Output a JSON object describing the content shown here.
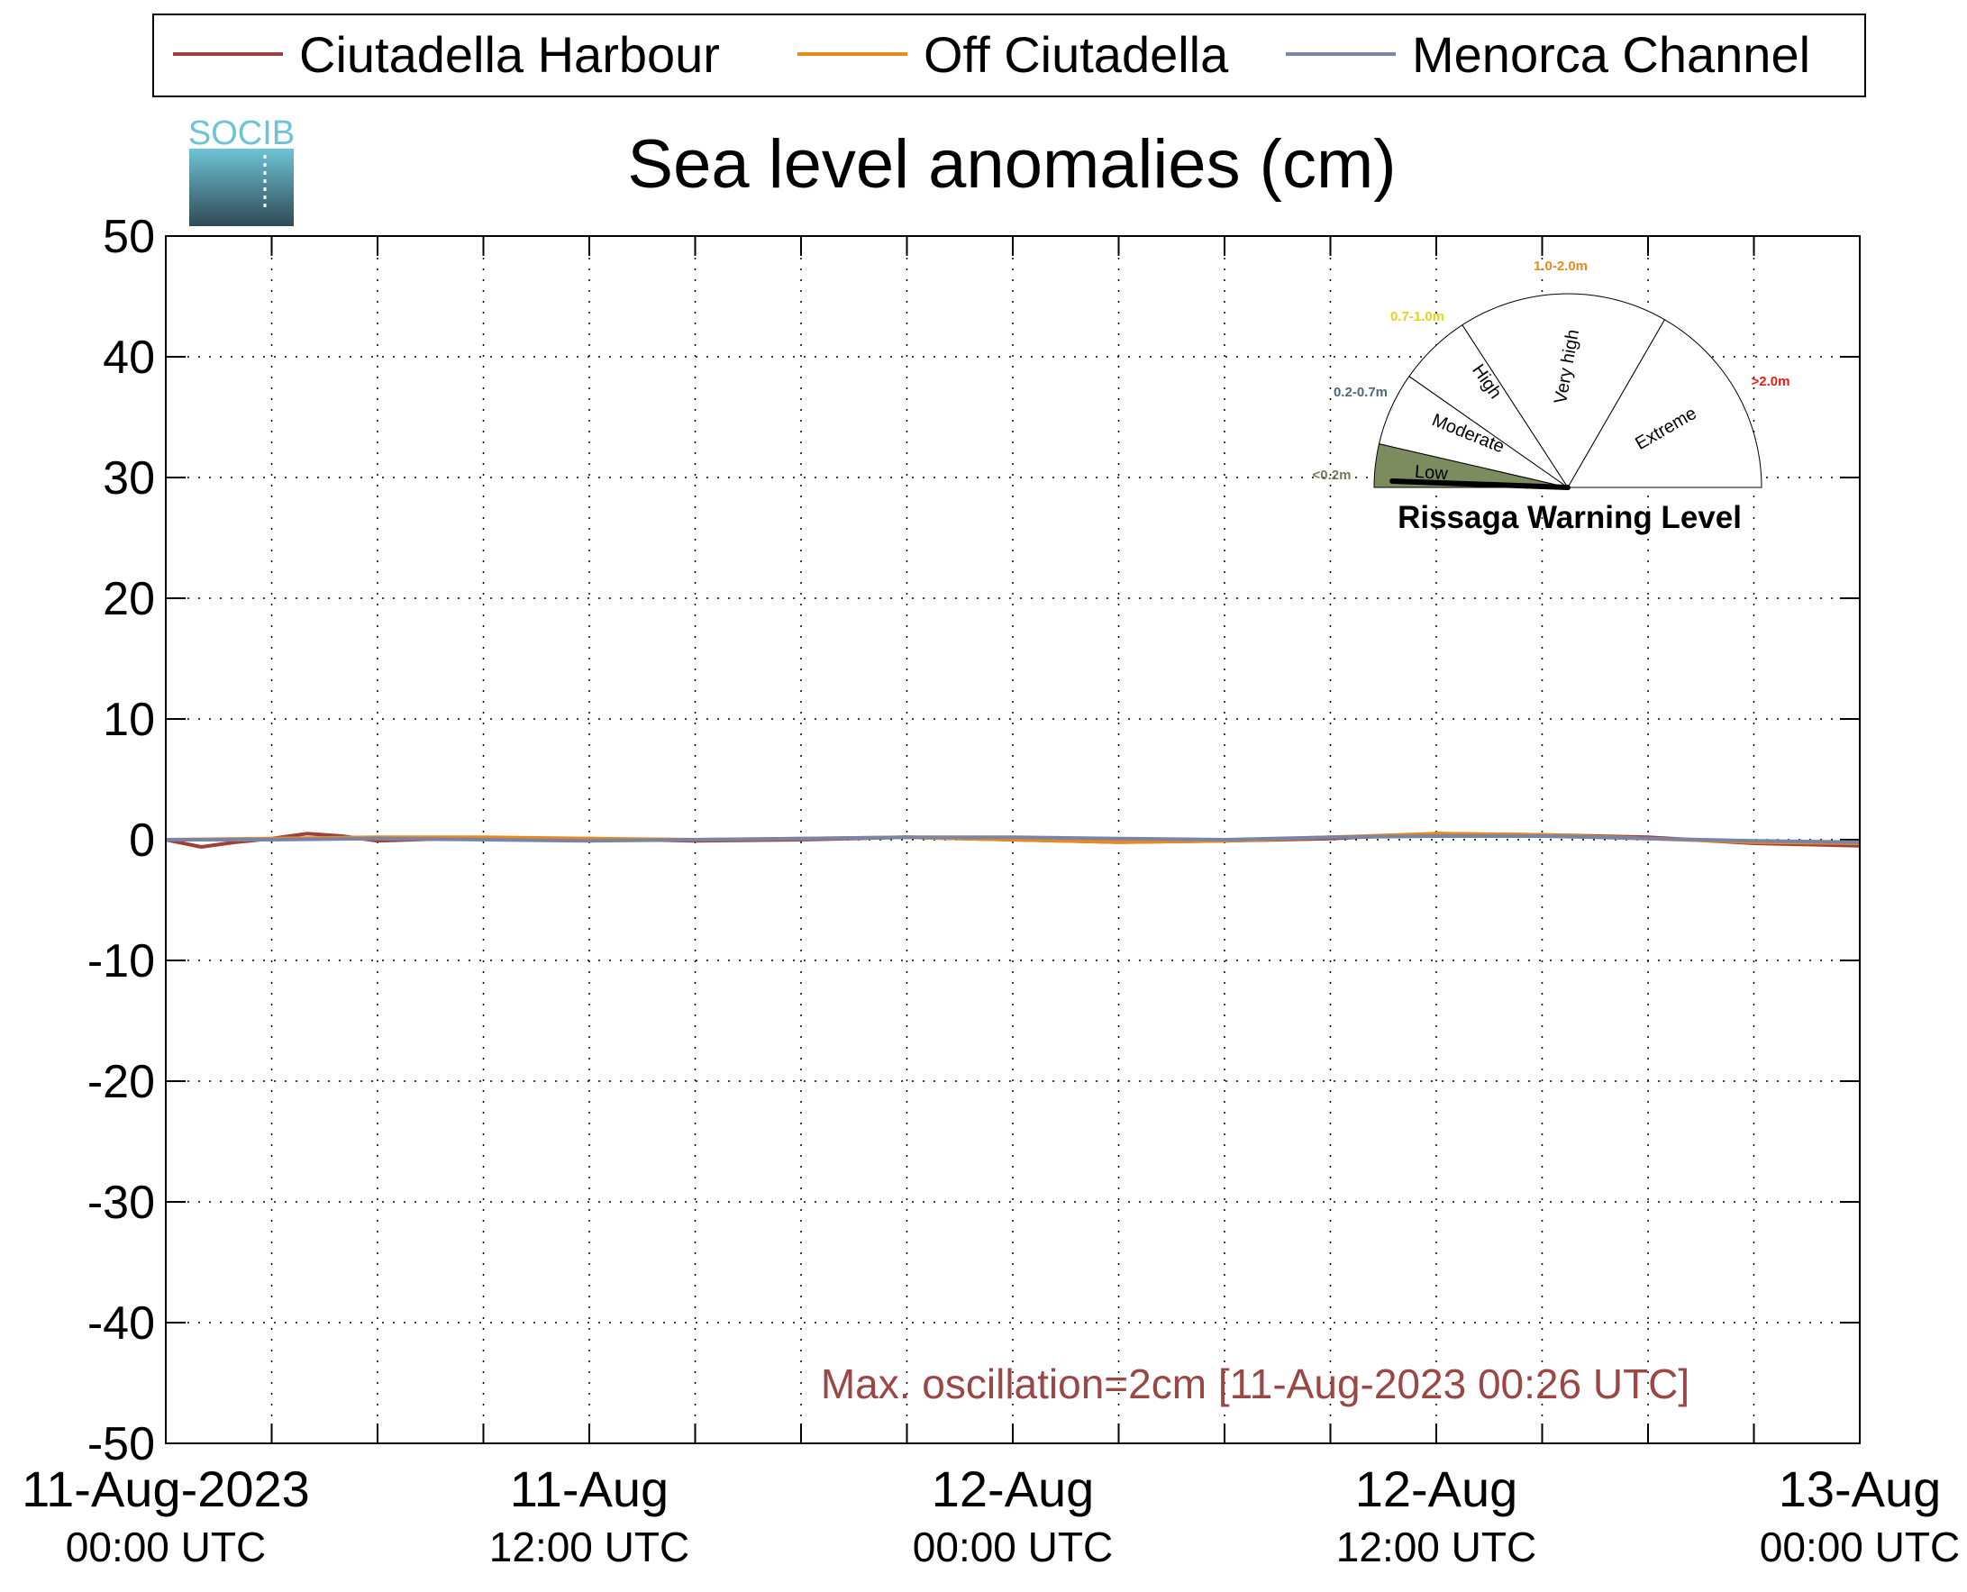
{
  "chart_data": {
    "type": "line",
    "title": "Sea level anomalies (cm)",
    "xlabel": "",
    "ylabel": "",
    "ylim": [
      -50,
      50
    ],
    "yticks": [
      50,
      40,
      30,
      20,
      10,
      0,
      -10,
      -20,
      -30,
      -40,
      -50
    ],
    "xlim": [
      "2023-08-11 00:00",
      "2023-08-13 00:00"
    ],
    "xtick_labels": [
      {
        "at": "2023-08-11 00:00",
        "line1": "11-Aug-2023",
        "line2": "00:00 UTC"
      },
      {
        "at": "2023-08-11 12:00",
        "line1": "11-Aug",
        "line2": "12:00 UTC"
      },
      {
        "at": "2023-08-12 00:00",
        "line1": "12-Aug",
        "line2": "00:00 UTC"
      },
      {
        "at": "2023-08-12 12:00",
        "line1": "12-Aug",
        "line2": "12:00 UTC"
      },
      {
        "at": "2023-08-13 00:00",
        "line1": "13-Aug",
        "line2": "00:00 UTC"
      }
    ],
    "minor_x_ticks_hours": [
      3,
      6,
      9,
      15,
      18,
      21,
      27,
      30,
      33,
      39,
      42,
      45
    ],
    "grid": true,
    "legend_position": "top",
    "series": [
      {
        "name": "Ciutadella Harbour",
        "color": "#a0403c",
        "x": [
          "2023-08-11 00:00",
          "2023-08-11 01:00",
          "2023-08-11 02:00",
          "2023-08-11 03:00",
          "2023-08-11 04:00",
          "2023-08-11 05:00",
          "2023-08-11 06:00",
          "2023-08-11 08:00",
          "2023-08-11 10:00",
          "2023-08-11 12:00",
          "2023-08-11 15:00",
          "2023-08-11 18:00",
          "2023-08-11 21:00",
          "2023-08-12 00:00",
          "2023-08-12 03:00",
          "2023-08-12 06:00",
          "2023-08-12 09:00",
          "2023-08-12 12:00",
          "2023-08-12 15:00",
          "2023-08-12 18:00",
          "2023-08-12 21:00",
          "2023-08-13 00:00"
        ],
        "values": [
          0.0,
          -0.6,
          -0.2,
          0.1,
          0.5,
          0.3,
          -0.1,
          0.1,
          0.0,
          0.1,
          -0.1,
          0.0,
          0.2,
          0.0,
          -0.2,
          -0.1,
          0.1,
          0.5,
          0.4,
          0.2,
          -0.3,
          -0.5
        ]
      },
      {
        "name": "Off Ciutadella",
        "color": "#e88a1c",
        "x": [
          "2023-08-11 00:00",
          "2023-08-11 03:00",
          "2023-08-11 06:00",
          "2023-08-11 09:00",
          "2023-08-11 12:00",
          "2023-08-11 15:00",
          "2023-08-11 18:00",
          "2023-08-11 21:00",
          "2023-08-12 00:00",
          "2023-08-12 03:00",
          "2023-08-12 06:00",
          "2023-08-12 09:00",
          "2023-08-12 12:00",
          "2023-08-12 15:00",
          "2023-08-12 18:00",
          "2023-08-12 21:00",
          "2023-08-13 00:00"
        ],
        "values": [
          0.0,
          0.1,
          0.2,
          0.2,
          0.1,
          0.0,
          0.1,
          0.2,
          0.0,
          -0.2,
          -0.1,
          0.2,
          0.5,
          0.4,
          0.1,
          -0.2,
          -0.3
        ]
      },
      {
        "name": "Menorca Channel",
        "color": "#7a84a6",
        "x": [
          "2023-08-11 00:00",
          "2023-08-11 03:00",
          "2023-08-11 06:00",
          "2023-08-11 09:00",
          "2023-08-11 12:00",
          "2023-08-11 15:00",
          "2023-08-11 18:00",
          "2023-08-11 21:00",
          "2023-08-12 00:00",
          "2023-08-12 03:00",
          "2023-08-12 06:00",
          "2023-08-12 09:00",
          "2023-08-12 12:00",
          "2023-08-12 15:00",
          "2023-08-12 18:00",
          "2023-08-12 21:00",
          "2023-08-13 00:00"
        ],
        "values": [
          0.0,
          0.0,
          0.1,
          0.0,
          -0.1,
          0.0,
          0.1,
          0.2,
          0.2,
          0.1,
          0.0,
          0.2,
          0.3,
          0.3,
          0.1,
          -0.1,
          -0.2
        ]
      }
    ],
    "annotation": {
      "text": "Max. oscillation=2cm [11-Aug-2023 00:26 UTC]",
      "color": "#9a4745"
    }
  },
  "logo": {
    "text": "SOCIB",
    "color_top": "#6ec3d6",
    "color_bottom": "#2f4a55"
  },
  "gauge": {
    "title": "Rissaga Warning Level",
    "current_level": "Low",
    "segments": [
      {
        "label": "Low",
        "range_label": "<0.2m",
        "range_color": "#6f7d55",
        "fill": "#7d8c5e"
      },
      {
        "label": "Moderate",
        "range_label": "0.2-0.7m",
        "range_color": "#4c6a78",
        "fill": "#ffffff"
      },
      {
        "label": "High",
        "range_label": "0.7-1.0m",
        "range_color": "#e8d21a",
        "fill": "#ffffff"
      },
      {
        "label": "Very high",
        "range_label": "1.0-2.0m",
        "range_color": "#f0891c",
        "fill": "#ffffff"
      },
      {
        "label": "Extreme",
        "range_label": ">2.0m",
        "range_color": "#e81c1c",
        "fill": "#ffffff"
      }
    ]
  }
}
